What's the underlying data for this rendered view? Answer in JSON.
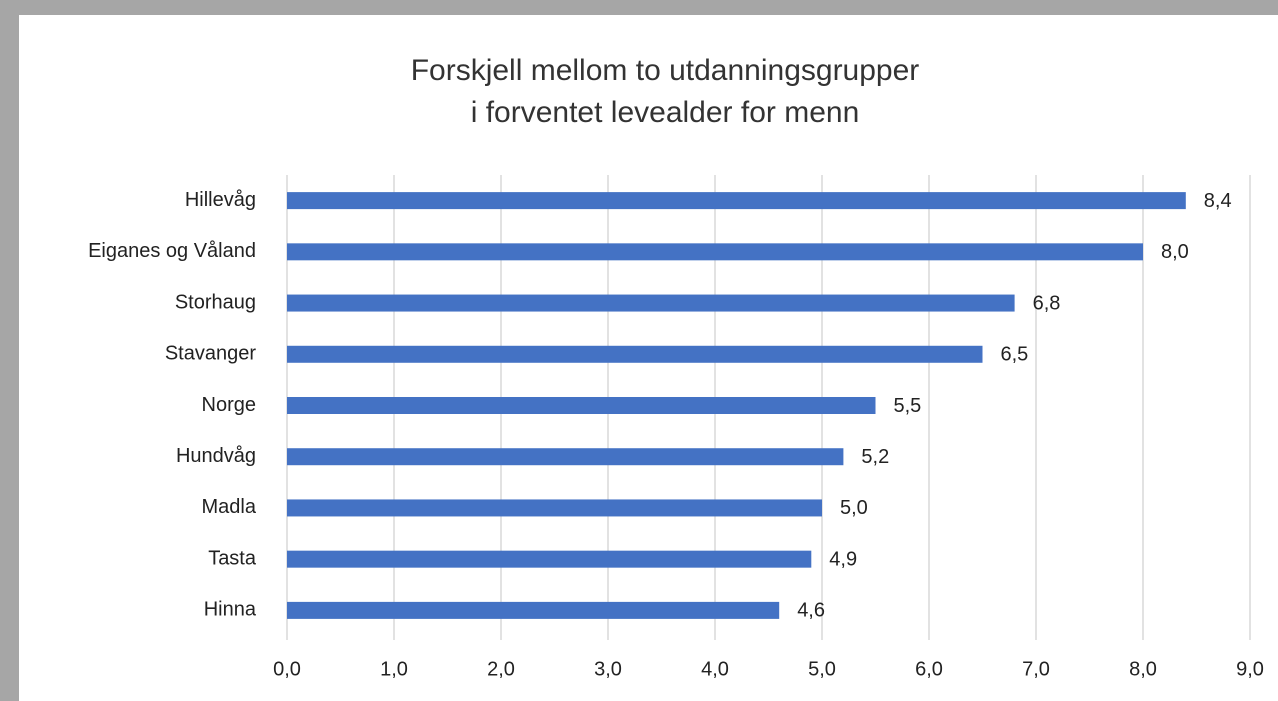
{
  "chart_data": {
    "type": "bar",
    "orientation": "horizontal",
    "title": [
      "Forskjell mellom to utdanningsgrupper",
      "i forventet levealder for menn"
    ],
    "categories": [
      "Hillevåg",
      "Eiganes og Våland",
      "Storhaug",
      "Stavanger",
      "Norge",
      "Hundvåg",
      "Madla",
      "Tasta",
      "Hinna"
    ],
    "values": [
      8.4,
      8.0,
      6.8,
      6.5,
      5.5,
      5.2,
      5.0,
      4.9,
      4.6
    ],
    "value_labels": [
      "8,4",
      "8,0",
      "6,8",
      "6,5",
      "5,5",
      "5,2",
      "5,0",
      "4,9",
      "4,6"
    ],
    "color": "#4472c4",
    "xlim": [
      0,
      9
    ],
    "xticks": [
      {
        "value": 0,
        "label": "0,0"
      },
      {
        "value": 1,
        "label": "1,0"
      },
      {
        "value": 2,
        "label": "2,0"
      },
      {
        "value": 3,
        "label": "3,0"
      },
      {
        "value": 4,
        "label": "4,0"
      },
      {
        "value": 5,
        "label": "5,0"
      },
      {
        "value": 6,
        "label": "6,0"
      },
      {
        "value": 7,
        "label": "7,0"
      },
      {
        "value": 8,
        "label": "8,0"
      },
      {
        "value": 9,
        "label": "9,0"
      }
    ],
    "grid": true
  }
}
